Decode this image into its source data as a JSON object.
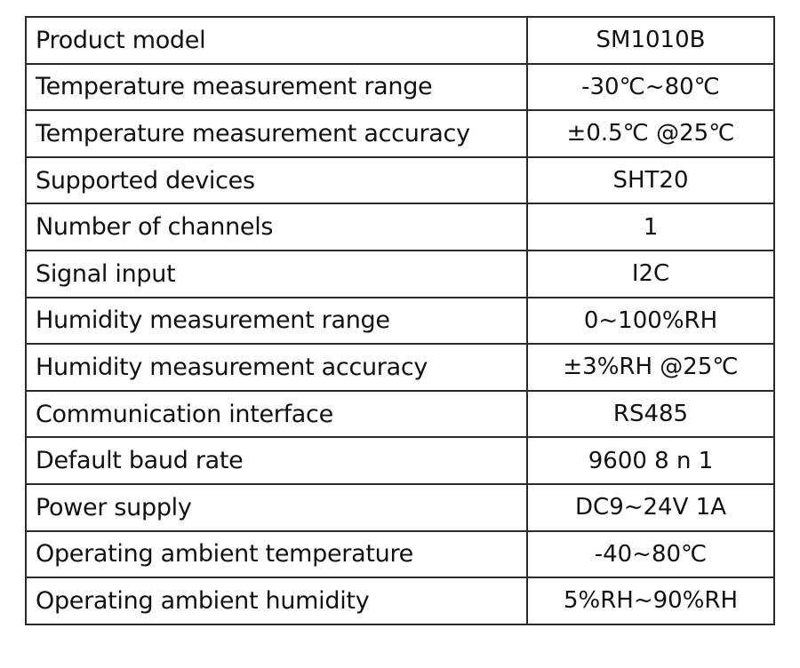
{
  "table": {
    "rows": [
      [
        "Product model",
        "SM1010B"
      ],
      [
        "Temperature measurement range",
        "-30℃~80℃"
      ],
      [
        "Temperature measurement accuracy",
        "±0.5℃ @25℃"
      ],
      [
        "Supported devices",
        "SHT20"
      ],
      [
        "Number of channels",
        "1"
      ],
      [
        "Signal input",
        "I2C"
      ],
      [
        "Humidity measurement range",
        "0~100%RH"
      ],
      [
        "Humidity measurement accuracy",
        "±3%RH @25℃"
      ],
      [
        "Communication interface",
        "RS485"
      ],
      [
        "Default baud rate",
        "9600 8 n 1"
      ],
      [
        "Power supply",
        "DC9~24V 1A"
      ],
      [
        "Operating ambient temperature",
        "-40~80℃"
      ],
      [
        "Operating ambient humidity",
        "5%RH~90%RH"
      ]
    ]
  }
}
